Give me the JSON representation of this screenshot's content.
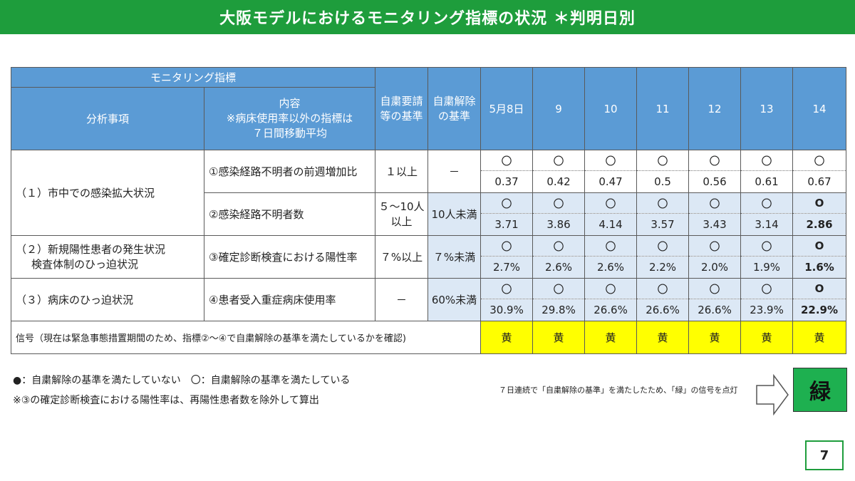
{
  "title": "大阪モデルにおけるモニタリング指標の状況 ＊判明日別",
  "header": {
    "group": "モニタリング指標",
    "analysis": "分析事項",
    "content_line1": "内容",
    "content_line2": "※病床使用率以外の指標は",
    "content_line3": "７日間移動平均",
    "req_line1": "自粛要請",
    "req_line2": "等の基準",
    "rel_line1": "自粛解除",
    "rel_line2": "の基準",
    "days": [
      "5月8日",
      "9",
      "10",
      "11",
      "12",
      "13",
      "14"
    ]
  },
  "rows": {
    "analysis1": "（１）市中での感染拡大状況",
    "analysis2_line1": "（２）新規陽性患者の発生状況",
    "analysis2_line2": "検査体制のひっ迫状況",
    "analysis3": "（３）病床のひっ迫状況",
    "i1": {
      "label": "①感染経路不明者の前週増加比",
      "req": "１以上",
      "rel": "－",
      "marks": [
        "〇",
        "〇",
        "〇",
        "〇",
        "〇",
        "〇",
        "〇"
      ],
      "values": [
        "0.37",
        "0.42",
        "0.47",
        "0.5",
        "0.56",
        "0.61",
        "0.67"
      ]
    },
    "i2": {
      "label": "②感染経路不明者数",
      "req_line1": "５～10人",
      "req_line2": "以上",
      "rel": "10人未満",
      "marks": [
        "〇",
        "〇",
        "〇",
        "〇",
        "〇",
        "〇",
        "O"
      ],
      "values": [
        "3.71",
        "3.86",
        "4.14",
        "3.57",
        "3.43",
        "3.14",
        "2.86"
      ]
    },
    "i3": {
      "label": "③確定診断検査における陽性率",
      "req": "７%以上",
      "rel": "７%未満",
      "marks": [
        "〇",
        "〇",
        "〇",
        "〇",
        "〇",
        "〇",
        "O"
      ],
      "values": [
        "2.7%",
        "2.6%",
        "2.6%",
        "2.2%",
        "2.0%",
        "1.9%",
        "1.6%"
      ]
    },
    "i4": {
      "label": "④患者受入重症病床使用率",
      "req": "－",
      "rel": "60%未満",
      "marks": [
        "〇",
        "〇",
        "〇",
        "〇",
        "〇",
        "〇",
        "O"
      ],
      "values": [
        "30.9%",
        "29.8%",
        "26.6%",
        "26.6%",
        "26.6%",
        "23.9%",
        "22.9%"
      ]
    }
  },
  "signal": {
    "label": "信号（現在は緊急事態措置期間のため、指標②～④で自粛解除の基準を満たしているかを確認)",
    "values": [
      "黄",
      "黄",
      "黄",
      "黄",
      "黄",
      "黄",
      "黄"
    ]
  },
  "legend": {
    "line1": "●：自粛解除の基準を満たしていない　〇：自粛解除の基準を満たしている",
    "line2": "※③の確定診断検査における陽性率は、再陽性患者数を除外して算出"
  },
  "notice": "７日連続で「自粛解除の基準」を満たしたため、「緑」の信号を点灯",
  "green_signal": "緑",
  "page_number": "7",
  "colors": {
    "title_green": "#1e9d3c",
    "header_blue": "#5b9bd5",
    "shade_blue": "#dce8f5",
    "signal_yellow": "#ffff00",
    "signal_green": "#1eb050"
  }
}
